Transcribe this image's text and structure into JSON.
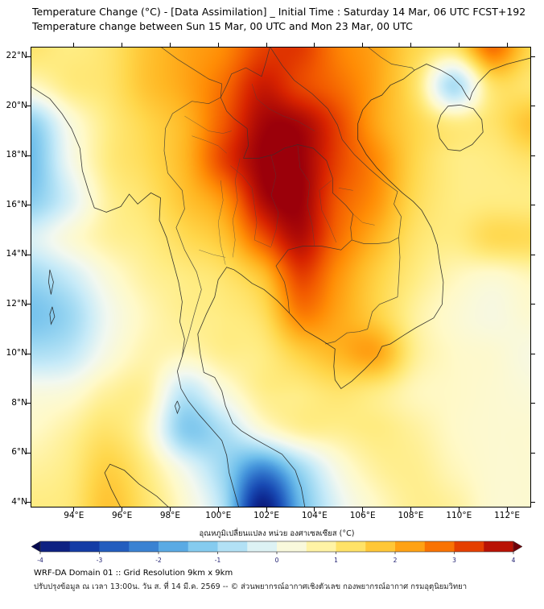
{
  "header": {
    "title_line1": "Temperature Change (°C) - [Data Assimilation] _ Initial Time : Saturday 14 Mar, 06 UTC FCST+192",
    "title_line2": "Temperature change between Sun 15 Mar, 00 UTC and Mon 23 Mar, 00 UTC"
  },
  "axes": {
    "y_tick_labels": [
      "22°N",
      "20°N",
      "18°N",
      "16°N",
      "14°N",
      "12°N",
      "10°N",
      "8°N",
      "6°N",
      "4°N"
    ],
    "y_tick_values": [
      22,
      20,
      18,
      16,
      14,
      12,
      10,
      8,
      6,
      4
    ],
    "x_tick_labels": [
      "94°E",
      "96°E",
      "98°E",
      "100°E",
      "102°E",
      "104°E",
      "106°E",
      "108°E",
      "110°E",
      "112°E"
    ],
    "x_tick_values": [
      94,
      96,
      98,
      100,
      102,
      104,
      106,
      108,
      110,
      112
    ]
  },
  "colorbar": {
    "title": "อุณหภูมิเปลี่ยนแปลง หน่วย องศาเซลเซียส (°C)",
    "tick_labels": [
      "-4",
      "-3",
      "-2",
      "-1",
      "0",
      "1",
      "2",
      "3",
      "4"
    ],
    "tick_values": [
      -4,
      -3,
      -2,
      -1,
      0,
      1,
      2,
      3,
      4
    ],
    "min": -4,
    "max": 4,
    "extend_under": "#060a50",
    "extend_over": "#6e0008"
  },
  "footer": {
    "line1": "WRF-DA Domain 01 :: Grid Resolution 9km x 9km",
    "line2": "ปรับปรุงข้อมูล ณ เวลา 13:00น. วัน ส. ที่ 14 มี.ค. 2569 -- © ส่วนพยากรณ์อากาศเชิงตัวเลข กองพยากรณ์อากาศ กรมอุตุนิยมวิทยา"
  },
  "chart_data": {
    "type": "heatmap",
    "title": "Temperature change between Sun 15 Mar, 00 UTC and Mon 23 Mar, 00 UTC",
    "units": "°C",
    "value_range": [
      -4,
      4
    ],
    "lon_extent": [
      92.2,
      113.0
    ],
    "lat_extent": [
      22.4,
      3.8
    ],
    "grid_lons": [
      92.2,
      93.8,
      95.4,
      97.0,
      98.6,
      100.2,
      101.8,
      103.4,
      105.0,
      106.6,
      108.2,
      109.8,
      111.4,
      113.0
    ],
    "grid_lats": [
      22.4,
      20.85,
      19.3,
      17.75,
      16.2,
      14.65,
      13.1,
      11.55,
      10.0,
      8.45,
      6.9,
      5.35,
      3.8
    ],
    "values": [
      [
        1.2,
        1.0,
        1.2,
        1.8,
        2.2,
        2.5,
        3.2,
        3.3,
        2.6,
        2.2,
        1.5,
        1.2,
        2.8,
        1.5
      ],
      [
        0.5,
        1.0,
        1.2,
        1.8,
        2.2,
        2.8,
        3.6,
        3.2,
        2.8,
        2.2,
        1.2,
        -0.8,
        1.2,
        1.2
      ],
      [
        -1.2,
        0.2,
        1.0,
        1.5,
        2.0,
        3.0,
        3.9,
        3.9,
        3.2,
        2.2,
        1.5,
        1.0,
        1.2,
        1.8
      ],
      [
        -1.5,
        0.0,
        1.0,
        1.4,
        2.0,
        3.2,
        4.0,
        4.0,
        3.2,
        2.5,
        1.5,
        1.0,
        1.0,
        1.2
      ],
      [
        -1.2,
        -0.3,
        0.8,
        1.2,
        1.8,
        2.4,
        3.8,
        4.0,
        3.0,
        2.4,
        1.4,
        1.0,
        1.0,
        1.0
      ],
      [
        -0.3,
        0.3,
        0.8,
        1.0,
        1.4,
        1.8,
        3.0,
        3.8,
        2.8,
        2.0,
        1.2,
        1.0,
        1.4,
        1.4
      ],
      [
        -1.0,
        -0.5,
        0.3,
        0.8,
        1.0,
        1.2,
        1.8,
        3.2,
        2.4,
        1.6,
        1.0,
        0.6,
        0.4,
        0.6
      ],
      [
        -1.4,
        -1.0,
        0.0,
        0.6,
        0.9,
        1.0,
        1.3,
        2.6,
        2.2,
        1.6,
        0.8,
        0.4,
        0.2,
        0.4
      ],
      [
        -0.8,
        -0.6,
        0.2,
        0.7,
        0.6,
        0.9,
        1.0,
        1.6,
        2.0,
        2.2,
        0.9,
        0.5,
        0.4,
        0.2
      ],
      [
        0.2,
        0.3,
        0.8,
        0.8,
        -0.6,
        0.2,
        0.9,
        1.0,
        1.2,
        1.0,
        0.6,
        0.5,
        0.4,
        0.3
      ],
      [
        0.5,
        0.8,
        1.2,
        0.6,
        -1.2,
        -0.8,
        0.2,
        0.8,
        0.9,
        1.0,
        0.8,
        0.5,
        0.4,
        0.4
      ],
      [
        0.8,
        1.0,
        1.6,
        1.0,
        0.0,
        -1.0,
        -2.2,
        -1.0,
        0.2,
        0.8,
        0.9,
        0.6,
        0.4,
        0.4
      ],
      [
        1.0,
        1.1,
        1.8,
        1.2,
        0.4,
        -0.8,
        -3.8,
        -1.6,
        -0.2,
        0.5,
        0.9,
        0.8,
        0.4,
        0.4
      ]
    ],
    "colorscale": {
      "levels": [
        -4,
        -3.5,
        -3,
        -2.5,
        -2,
        -1.5,
        -1,
        -0.5,
        0,
        0.5,
        1,
        1.5,
        2,
        2.5,
        3,
        3.5,
        4
      ],
      "colors": [
        "#0a146e",
        "#0f2d96",
        "#194bb4",
        "#2d6ec8",
        "#4696dc",
        "#6ebeeb",
        "#9bd7f2",
        "#c8ebf8",
        "#f2f8f0",
        "#fff9c8",
        "#ffec82",
        "#ffd74b",
        "#ffb723",
        "#ff8c05",
        "#f25a00",
        "#d72300",
        "#9b000a"
      ]
    },
    "legend_position": "bottom",
    "grid": false
  }
}
